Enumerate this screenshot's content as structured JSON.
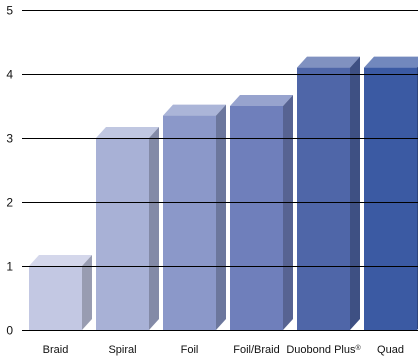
{
  "chart_data": {
    "type": "bar",
    "title": "",
    "xlabel": "",
    "ylabel": "",
    "categories": [
      "Braid",
      "Spiral",
      "Foil",
      "Foil/Braid",
      "Duobond Plus®",
      "Quad"
    ],
    "values": [
      1.0,
      3.0,
      3.35,
      3.5,
      4.1,
      4.1
    ],
    "ylim": [
      0,
      5
    ],
    "yticks": [
      0,
      1,
      2,
      3,
      4,
      5
    ],
    "grid": true,
    "legend": "none",
    "bar_style": "3d",
    "colors": [
      "#c3c8e3",
      "#a8b1d6",
      "#8b98c9",
      "#6f7fbb",
      "#4f66a8",
      "#3b5aa3"
    ]
  }
}
